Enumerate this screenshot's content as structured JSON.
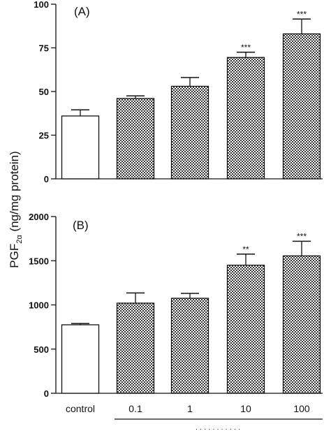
{
  "ylabel": {
    "main": "PGF",
    "sub": "2α",
    "rest": " (ng/mg protein)"
  },
  "xaxis": {
    "categories": [
      "control",
      "0.1",
      "1",
      "10",
      "100"
    ],
    "caption": "· · · · · · · ·  ·  · ·"
  },
  "colors": {
    "control_fill": "#ffffff",
    "treated_pattern": "checkerboard-gray",
    "stroke": "#111111"
  },
  "chart_data": [
    {
      "type": "bar",
      "panel_label": "(A)",
      "categories": [
        "control",
        "0.1",
        "1",
        "10",
        "100"
      ],
      "values": [
        36,
        46,
        53,
        69.5,
        83
      ],
      "errors": [
        3.5,
        1.5,
        5,
        3,
        8.5
      ],
      "significance": [
        "",
        "",
        "",
        "***",
        "***"
      ],
      "ylim": [
        0,
        100
      ],
      "yticks": [
        0,
        25,
        50,
        75,
        100
      ],
      "ylabel": "PGF2α (ng/mg protein)"
    },
    {
      "type": "bar",
      "panel_label": "(B)",
      "categories": [
        "control",
        "0.1",
        "1",
        "10",
        "100"
      ],
      "values": [
        775,
        1020,
        1075,
        1450,
        1555
      ],
      "errors": [
        15,
        115,
        55,
        125,
        165
      ],
      "significance": [
        "",
        "",
        "",
        "**",
        "***"
      ],
      "ylim": [
        0,
        2000
      ],
      "yticks": [
        0,
        500,
        1000,
        1500,
        2000
      ],
      "ylabel": "PGF2α (ng/mg protein)"
    }
  ]
}
